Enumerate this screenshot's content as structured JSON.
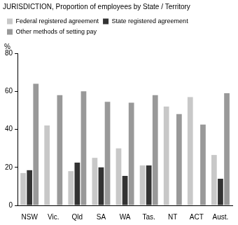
{
  "chart_data": {
    "type": "bar",
    "title": "JURISDICTION, Proportion of employees by State / Territory",
    "y_label": "%",
    "categories": [
      "NSW",
      "Vic.",
      "Qld",
      "SA",
      "WA",
      "Tas.",
      "NT",
      "ACT",
      "Aust."
    ],
    "series": [
      {
        "name": "Federal registered agreement",
        "color": "#c8c8c8",
        "values": [
          17,
          42,
          18,
          25,
          30,
          21,
          52,
          57,
          26.5
        ]
      },
      {
        "name": "State registered agreement",
        "color": "#333333",
        "values": [
          18.5,
          null,
          22.5,
          20,
          15.5,
          21,
          null,
          null,
          14
        ]
      },
      {
        "name": "Other methods of setting pay",
        "color": "#999999",
        "values": [
          64,
          58,
          60,
          54.5,
          54,
          58,
          48,
          42.5,
          59
        ]
      }
    ],
    "ylim": [
      0,
      80
    ],
    "yticks": [
      0,
      20,
      40,
      60,
      80
    ],
    "grid": true,
    "legend": "upper left"
  }
}
